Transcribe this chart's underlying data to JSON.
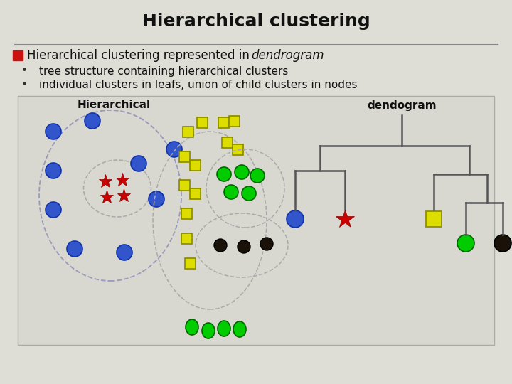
{
  "title": "Hierarchical clustering",
  "title_fontsize": 18,
  "bg_color": "#deded6",
  "bullet_header": "Hierarchical clustering represented in ",
  "bullet_header_italic": "dendrogram",
  "bullet1": "tree structure containing hierarchical clusters",
  "bullet2": "individual clusters in leafs, union of child clusters in nodes",
  "hier_label": "Hierarchical",
  "dendro_label": "dendogram",
  "panel_bg": "#d8d8d0",
  "panel_border": "#aaaaaa",
  "separator_color": "#888888",
  "tree_color": "#555555"
}
